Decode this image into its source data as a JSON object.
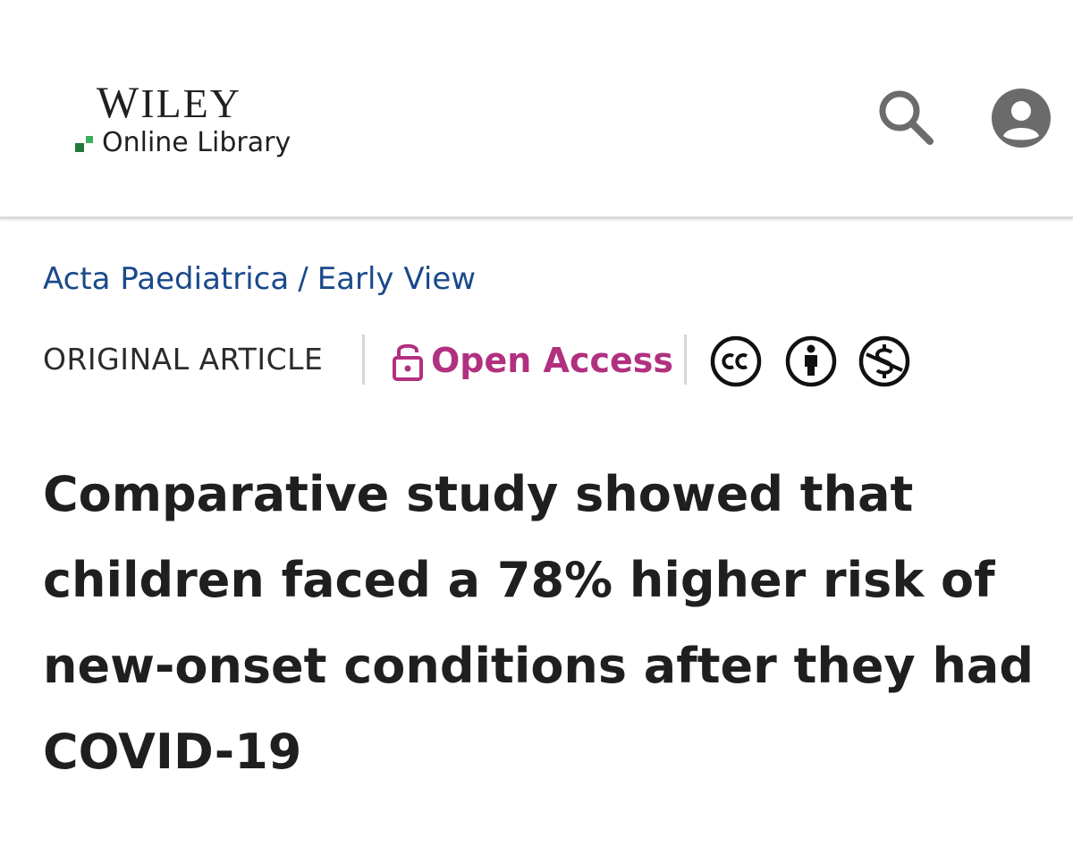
{
  "header": {
    "logo": {
      "brand": "WILEY",
      "brand_first": "W",
      "brand_rest": "ILEY",
      "product": "Online Library"
    },
    "icons": {
      "search": "search-icon",
      "account": "account-circle-icon"
    }
  },
  "breadcrumb": {
    "journal": "Acta Paediatrica",
    "separator": "/",
    "section": "Early View"
  },
  "article_meta": {
    "type": "ORIGINAL ARTICLE",
    "access_label": "Open Access",
    "access_icon": "open-lock-icon",
    "license_icons": [
      "cc-icon",
      "attribution-icon",
      "non-commercial-icon"
    ]
  },
  "article": {
    "title": "Comparative study showed that children faced a 78% higher risk of new-onset conditions after they had COVID-19"
  },
  "colors": {
    "link_blue": "#1a4a8a",
    "open_access_magenta": "#b1307f",
    "text_dark": "#1f1f1f",
    "icon_gray": "#6b6b6b",
    "logo_green": "#1f7a3a"
  }
}
